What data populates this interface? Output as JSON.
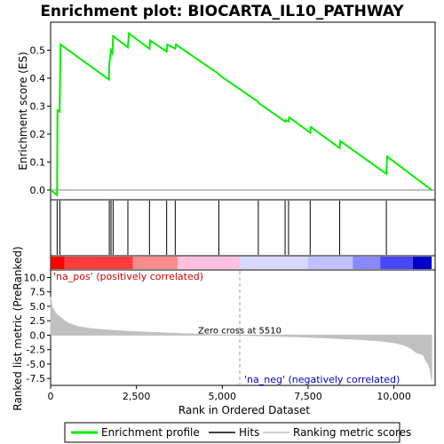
{
  "title": "Enrichment plot: BIOCARTA_IL10_PATHWAY",
  "colors": {
    "enrichment_line": "#00ee00",
    "hits": "#000000",
    "ranking_fill": "#c0c0c0",
    "pos_band": "#ff0000",
    "neg_band": "#0000ff",
    "zero_line": "#808080",
    "dashed_line": "#a0a0a0"
  },
  "chart_data": {
    "type": "line",
    "title": "Enrichment plot: BIOCARTA_IL10_PATHWAY",
    "xlabel": "Rank in Ordered Dataset",
    "top_panel": {
      "ylabel": "Enrichment score (ES)",
      "ylim": [
        -0.035,
        0.6
      ],
      "yticks": [
        0.0,
        0.1,
        0.2,
        0.3,
        0.4,
        0.5
      ],
      "ytick_labels": [
        "0.0",
        "0.1",
        "0.2",
        "0.3",
        "0.4",
        "0.5"
      ],
      "series": [
        {
          "name": "Enrichment profile",
          "x": [
            0,
            190,
            200,
            260,
            290,
            1700,
            1710,
            1760,
            1800,
            1820,
            2250,
            2280,
            2880,
            2900,
            3380,
            3400,
            3630,
            3650,
            4900,
            4920,
            6050,
            6070,
            6830,
            6850,
            6930,
            6950,
            7560,
            7580,
            8420,
            8440,
            9780,
            9800,
            11100
          ],
          "y": [
            0.0,
            -0.018,
            0.285,
            0.28,
            0.52,
            0.395,
            0.45,
            0.5,
            0.49,
            0.55,
            0.51,
            0.56,
            0.505,
            0.535,
            0.495,
            0.52,
            0.505,
            0.52,
            0.415,
            0.41,
            0.315,
            0.31,
            0.245,
            0.25,
            0.245,
            0.26,
            0.205,
            0.225,
            0.15,
            0.175,
            0.058,
            0.12,
            0.0
          ]
        }
      ]
    },
    "hits_panel": {
      "series_name": "Hits",
      "x": [
        190,
        270,
        1710,
        1760,
        1820,
        2250,
        2880,
        3380,
        3630,
        4900,
        6050,
        6830,
        6930,
        7560,
        8420,
        9780
      ]
    },
    "bottom_panel": {
      "ylabel": "Ranked list metric (PreRanked)",
      "ylim": [
        -8.7,
        11.3
      ],
      "yticks": [
        10.0,
        7.5,
        5.0,
        2.5,
        0.0,
        -2.5,
        -5.0,
        -7.5
      ],
      "ytick_labels": [
        "10.0",
        "7.5",
        "5.0",
        "2.5",
        "0.0",
        "-2.5",
        "-5.0",
        "-7.5"
      ],
      "series_name": "Ranking metric scores",
      "x": [
        0,
        50,
        150,
        300,
        500,
        800,
        1200,
        1700,
        2300,
        3000,
        3800,
        4600,
        5510,
        6400,
        7300,
        8200,
        9000,
        9600,
        10000,
        10300,
        10500,
        10650,
        10750,
        10850,
        10950,
        11020,
        11060,
        11100
      ],
      "y": [
        6.6,
        4.8,
        3.8,
        3.0,
        2.1,
        1.5,
        1.1,
        0.85,
        0.65,
        0.45,
        0.25,
        0.1,
        0.0,
        -0.15,
        -0.3,
        -0.5,
        -0.75,
        -1.0,
        -1.3,
        -1.7,
        -2.3,
        -3.0,
        -3.2,
        -3.4,
        -4.6,
        -5.2,
        -6.2,
        -7.8
      ]
    },
    "xlim": [
      0,
      11200
    ],
    "xticks": [
      0,
      2500,
      5000,
      7500,
      10000
    ],
    "xtick_labels": [
      "0",
      "2,500",
      "5,000",
      "7,500",
      "10,000"
    ],
    "zero_cross": 5510,
    "color_band": {
      "x_end": 11100,
      "segments": [
        {
          "x0": 0,
          "x1": 400,
          "color": "#ff0000"
        },
        {
          "x0": 400,
          "x1": 2400,
          "color": "#ff3c3c"
        },
        {
          "x0": 2400,
          "x1": 3700,
          "color": "#ff8c8c"
        },
        {
          "x0": 3700,
          "x1": 5510,
          "color": "#ffc0e0"
        },
        {
          "x0": 5510,
          "x1": 7500,
          "color": "#d8d8ff"
        },
        {
          "x0": 7500,
          "x1": 8800,
          "color": "#c0c0ff"
        },
        {
          "x0": 8800,
          "x1": 9600,
          "color": "#8888ff"
        },
        {
          "x0": 9600,
          "x1": 10550,
          "color": "#4848ff"
        },
        {
          "x0": 10550,
          "x1": 11100,
          "color": "#0000cc"
        }
      ]
    },
    "annotations": {
      "na_pos": "'na_pos' (positively correlated)",
      "na_neg": "'na_neg' (negatively correlated)",
      "zero_cross": "Zero cross at 5510"
    },
    "legend": {
      "placement": "bottom",
      "entries": [
        {
          "label": "Enrichment profile",
          "kind": "line-green"
        },
        {
          "label": "Hits",
          "kind": "line-black"
        },
        {
          "label": "Ranking metric scores",
          "kind": "line-gray"
        }
      ]
    }
  }
}
